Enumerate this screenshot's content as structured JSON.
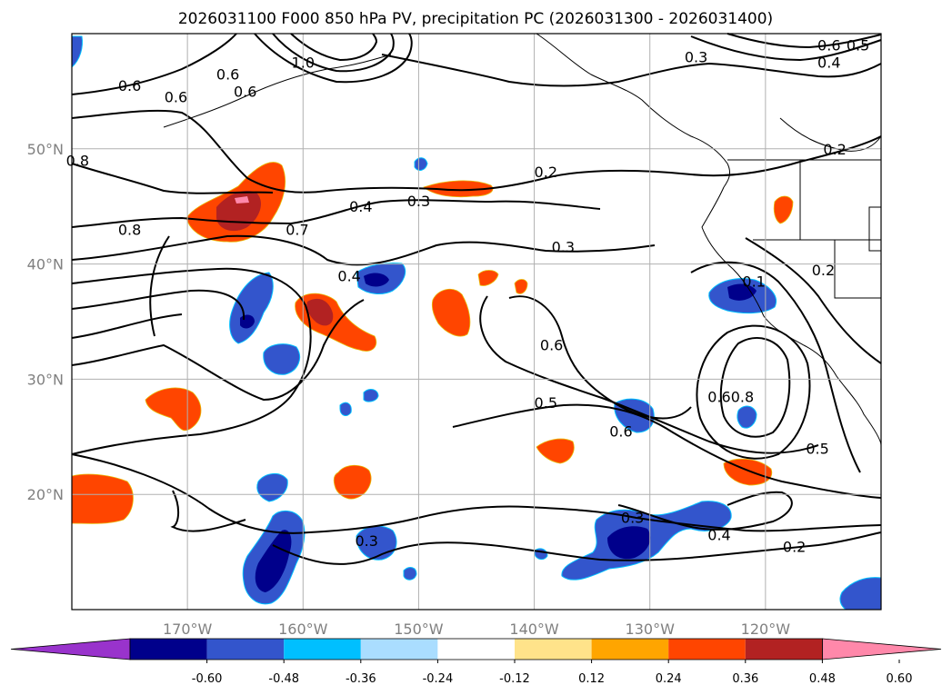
{
  "chart_data": {
    "type": "contour-map",
    "title": "2026031100 F000 850 hPa PV, precipitation PC (2026031300 - 2026031400)",
    "x_ticks": [
      {
        "lon": -170,
        "label": "170°W"
      },
      {
        "lon": -160,
        "label": "160°W"
      },
      {
        "lon": -150,
        "label": "150°W"
      },
      {
        "lon": -140,
        "label": "140°W"
      },
      {
        "lon": -130,
        "label": "130°W"
      },
      {
        "lon": -120,
        "label": "120°W"
      }
    ],
    "y_ticks": [
      {
        "lat": 20,
        "label": "20°N"
      },
      {
        "lat": 30,
        "label": "30°N"
      },
      {
        "lat": 40,
        "label": "40°N"
      },
      {
        "lat": 50,
        "label": "50°N"
      }
    ],
    "lon_range": [
      -180,
      -110
    ],
    "lat_range": [
      10,
      60
    ],
    "colorbar": {
      "levels": [
        "-0.60",
        "-0.48",
        "-0.36",
        "-0.24",
        "-0.12",
        "0.12",
        "0.24",
        "0.36",
        "0.48",
        "0.60"
      ],
      "colors": [
        "#9933cc",
        "#00008b",
        "#3355cc",
        "#00bfff",
        "#aaddff",
        "#ffffff",
        "#ffe38a",
        "#ffa500",
        "#ff4500",
        "#b22222",
        "#ff88aa"
      ]
    },
    "contour_labels": [
      {
        "text": "0.6",
        "lon": -175,
        "lat": 55.5
      },
      {
        "text": "0.6",
        "lon": -171,
        "lat": 54.5
      },
      {
        "text": "0.8",
        "lon": -179.5,
        "lat": 49
      },
      {
        "text": "0.6",
        "lon": -166.5,
        "lat": 56.5
      },
      {
        "text": "0.6",
        "lon": -165,
        "lat": 55
      },
      {
        "text": "1.0",
        "lon": -160,
        "lat": 57.5
      },
      {
        "text": "0.8",
        "lon": -175,
        "lat": 43
      },
      {
        "text": "0.7",
        "lon": -160.5,
        "lat": 43
      },
      {
        "text": "0.4",
        "lon": -155,
        "lat": 45
      },
      {
        "text": "0.3",
        "lon": -150,
        "lat": 45.5
      },
      {
        "text": "0.2",
        "lon": -139,
        "lat": 48
      },
      {
        "text": "0.4",
        "lon": -156,
        "lat": 39
      },
      {
        "text": "0.3",
        "lon": -137.5,
        "lat": 41.5
      },
      {
        "text": "0.3",
        "lon": -126,
        "lat": 58
      },
      {
        "text": "0.6",
        "lon": -114.5,
        "lat": 59
      },
      {
        "text": "0.5",
        "lon": -112,
        "lat": 59
      },
      {
        "text": "0.4",
        "lon": -114.5,
        "lat": 57.5
      },
      {
        "text": "0.2",
        "lon": -114,
        "lat": 50
      },
      {
        "text": "0.2",
        "lon": -115,
        "lat": 39.5
      },
      {
        "text": "0.1",
        "lon": -121,
        "lat": 38.5
      },
      {
        "text": "0.6",
        "lon": -138.5,
        "lat": 33
      },
      {
        "text": "0.5",
        "lon": -139,
        "lat": 28
      },
      {
        "text": "0.6",
        "lon": -132.5,
        "lat": 25.5
      },
      {
        "text": "0.6",
        "lon": -124,
        "lat": 28.5
      },
      {
        "text": "0.8",
        "lon": -122,
        "lat": 28.5
      },
      {
        "text": "0.5",
        "lon": -115.5,
        "lat": 24
      },
      {
        "text": "0.3",
        "lon": -131.5,
        "lat": 18
      },
      {
        "text": "0.4",
        "lon": -124,
        "lat": 16.5
      },
      {
        "text": "0.2",
        "lon": -117.5,
        "lat": 15.5
      },
      {
        "text": "0.3",
        "lon": -154.5,
        "lat": 16
      }
    ]
  }
}
